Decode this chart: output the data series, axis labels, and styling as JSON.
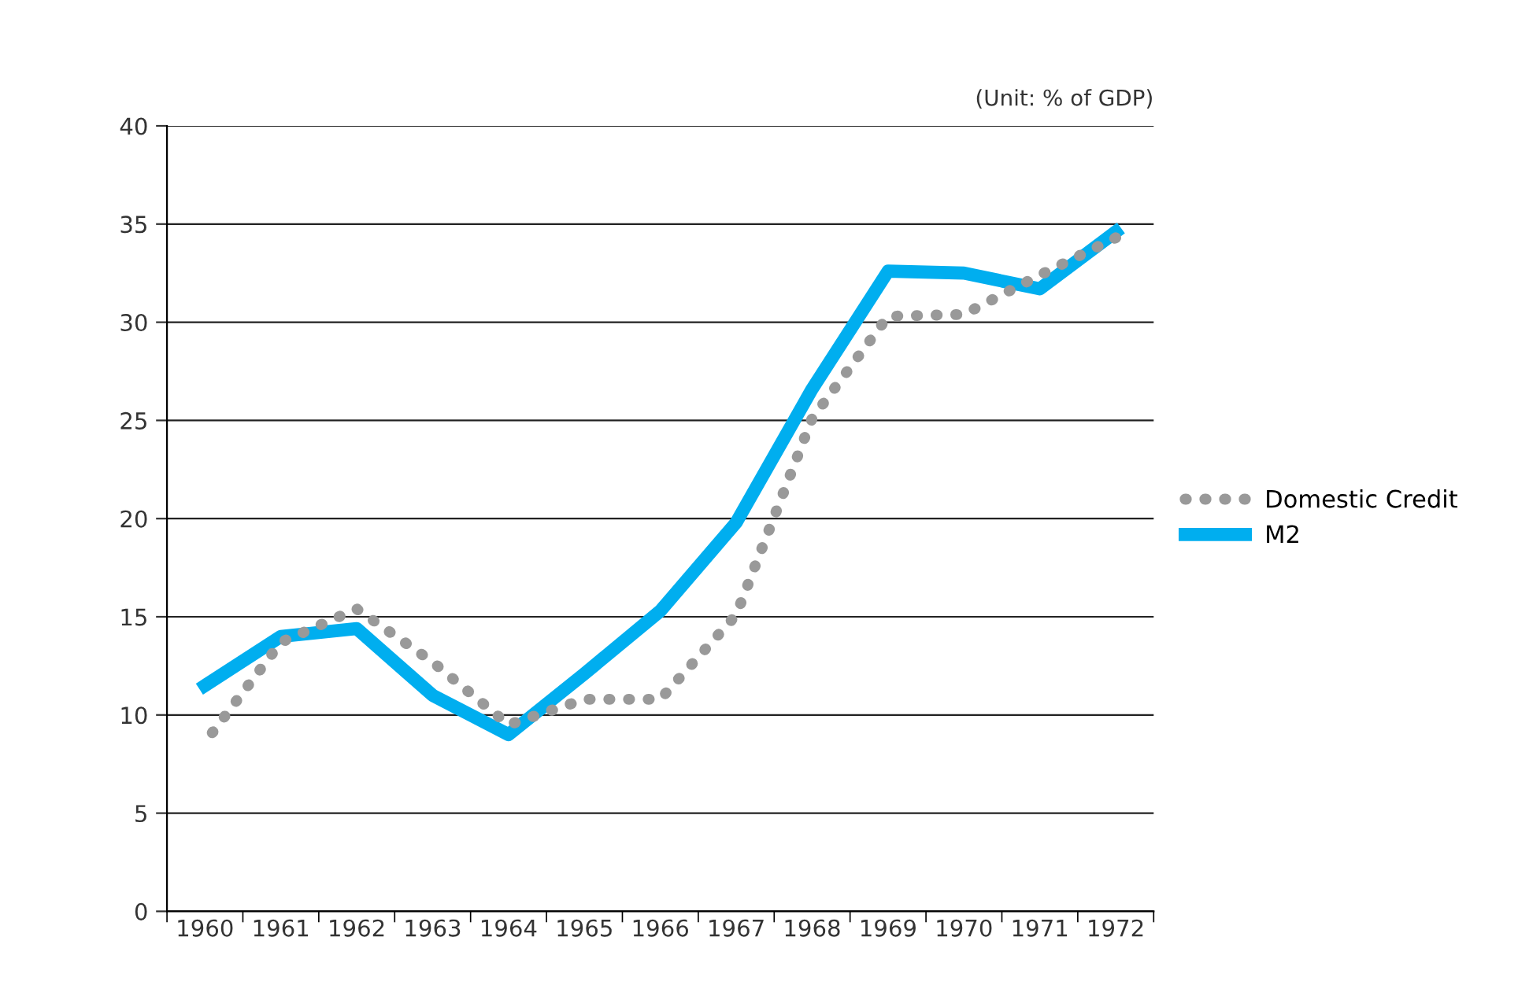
{
  "chart_data": {
    "type": "line",
    "annotations": [
      "(Unit: % of GDP)"
    ],
    "categories": [
      "1960",
      "1961",
      "1962",
      "1963",
      "1964",
      "1965",
      "1966",
      "1967",
      "1968",
      "1969",
      "1970",
      "1971",
      "1972"
    ],
    "series": [
      {
        "name": "Domestic Credit",
        "color": "#999999",
        "line_style": "dotted",
        "values": [
          8.6,
          13.7,
          15.4,
          12.7,
          9.5,
          10.8,
          10.8,
          15.1,
          25.1,
          30.3,
          30.4,
          32.4,
          34.3
        ]
      },
      {
        "name": "M2",
        "color": "#00aeef",
        "line_style": "solid",
        "values": [
          11.5,
          14.0,
          14.4,
          11.0,
          9.0,
          12.1,
          15.3,
          19.8,
          26.6,
          32.6,
          32.5,
          31.7,
          34.6
        ]
      }
    ],
    "ylim": [
      0,
      40
    ],
    "yticks": [
      0,
      5,
      10,
      15,
      20,
      25,
      30,
      35,
      40
    ],
    "grid": "y",
    "legend": "right",
    "marker": "none"
  }
}
